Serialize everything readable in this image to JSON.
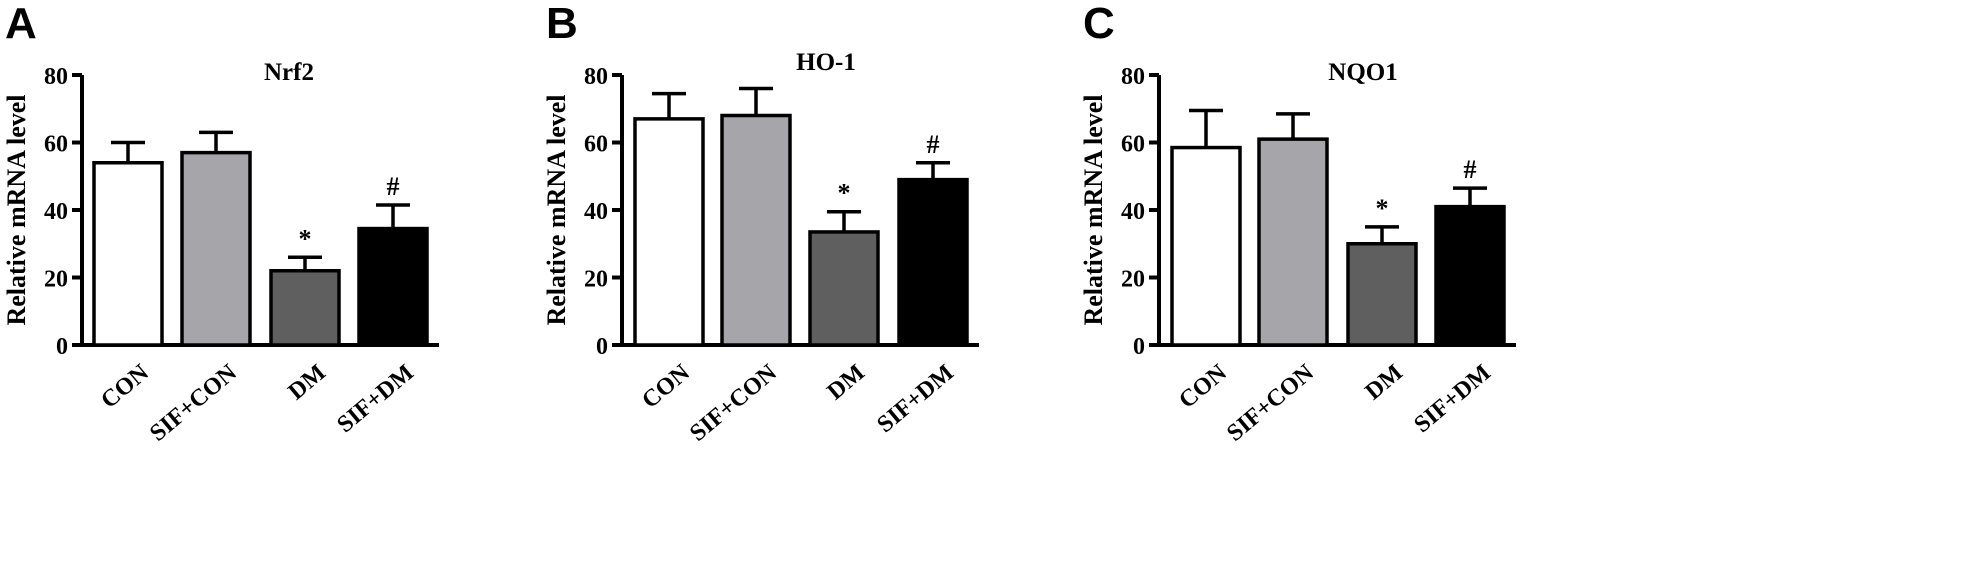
{
  "chart_data": [
    {
      "type": "bar",
      "panel": "A",
      "title": "Nrf2",
      "ylabel": "Relative mRNA level",
      "ylim": [
        0,
        80
      ],
      "yticks": [
        "0",
        "20",
        "40",
        "60",
        "80"
      ],
      "categories": [
        "CON",
        "SIF+CON",
        "DM",
        "SIF+DM"
      ],
      "values": [
        54,
        57,
        22,
        34.5
      ],
      "errors": [
        6,
        6,
        4,
        7
      ],
      "annotations": [
        "",
        "",
        "*",
        "#"
      ],
      "colors": [
        "#ffffff",
        "#a6a6aa",
        "#5f5f5f",
        "#000000"
      ]
    },
    {
      "type": "bar",
      "panel": "B",
      "title": "HO-1",
      "ylabel": "Relative mRNA level",
      "ylim": [
        0,
        80
      ],
      "yticks": [
        "0",
        "20",
        "40",
        "60",
        "80"
      ],
      "categories": [
        "CON",
        "SIF+CON",
        "DM",
        "SIF+DM"
      ],
      "values": [
        67,
        68,
        33.5,
        49
      ],
      "errors": [
        7.5,
        8,
        6,
        5
      ],
      "annotations": [
        "",
        "",
        "*",
        "#"
      ],
      "colors": [
        "#ffffff",
        "#a6a6aa",
        "#5f5f5f",
        "#000000"
      ]
    },
    {
      "type": "bar",
      "panel": "C",
      "title": "NQO1",
      "ylabel": "Relative mRNA level",
      "ylim": [
        0,
        80
      ],
      "yticks": [
        "0",
        "20",
        "40",
        "60",
        "80"
      ],
      "categories": [
        "CON",
        "SIF+CON",
        "DM",
        "SIF+DM"
      ],
      "values": [
        58.5,
        61,
        30,
        41
      ],
      "errors": [
        11,
        7.5,
        5,
        5.5
      ],
      "annotations": [
        "",
        "",
        "*",
        "#"
      ],
      "colors": [
        "#ffffff",
        "#a6a6aa",
        "#5f5f5f",
        "#000000"
      ]
    }
  ]
}
